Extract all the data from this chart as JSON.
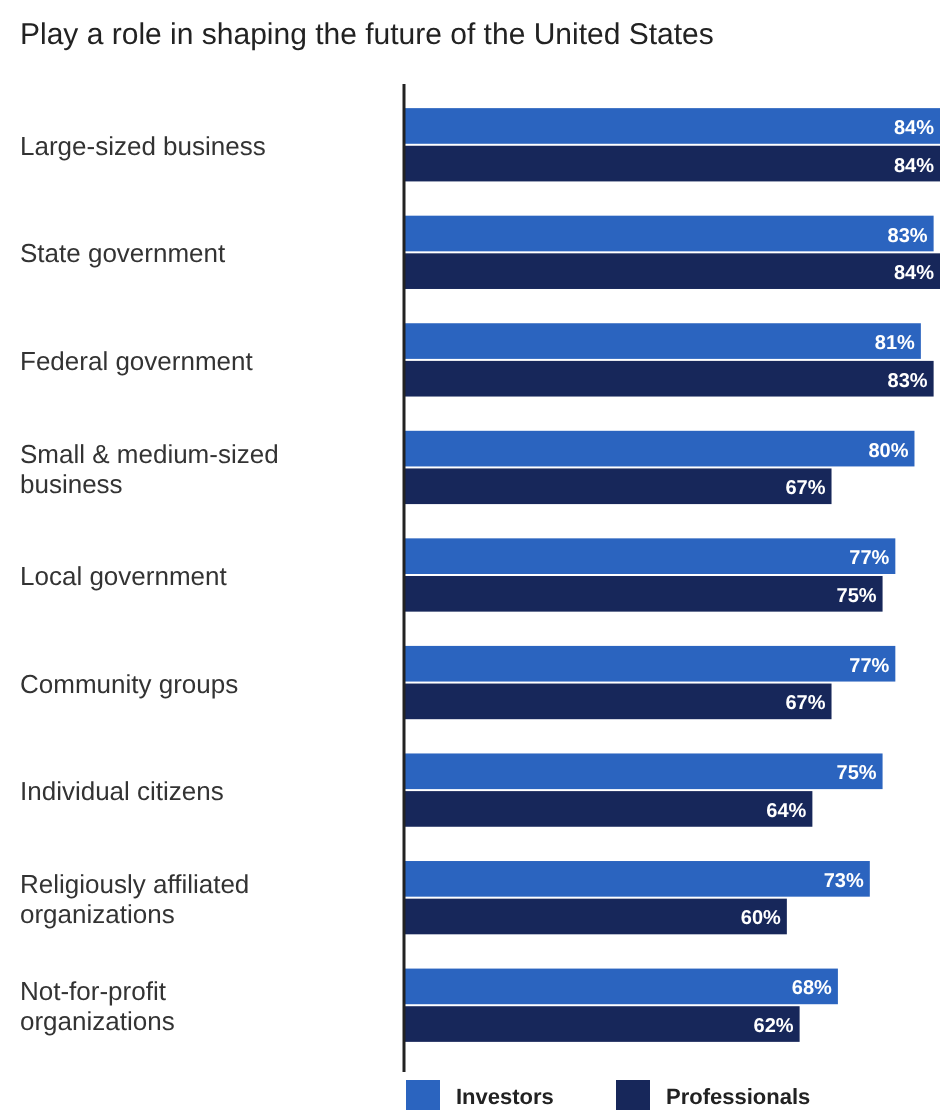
{
  "chart_data": {
    "type": "bar",
    "orientation": "horizontal",
    "title": "Play a role in shaping the future of the United States",
    "categories": [
      "Large-sized business",
      "State government",
      "Federal government",
      "Small & medium-sized business",
      "Local government",
      "Community groups",
      "Individual citizens",
      "Religiously affiliated organizations",
      "Not-for-profit organizations"
    ],
    "series": [
      {
        "name": "Investors",
        "color": "#2b64bf",
        "values": [
          84,
          83,
          81,
          80,
          77,
          77,
          75,
          73,
          68
        ],
        "value_labels": [
          "84%",
          "83%",
          "81%",
          "80%",
          "77%",
          "77%",
          "75%",
          "73%",
          "68%"
        ]
      },
      {
        "name": "Professionals",
        "color": "#17275a",
        "values": [
          84,
          84,
          83,
          67,
          75,
          67,
          64,
          60,
          62
        ],
        "value_labels": [
          "84%",
          "84%",
          "83%",
          "67%",
          "75%",
          "67%",
          "64%",
          "60%",
          "62%"
        ]
      }
    ],
    "legend": "bottom",
    "grid": false
  }
}
